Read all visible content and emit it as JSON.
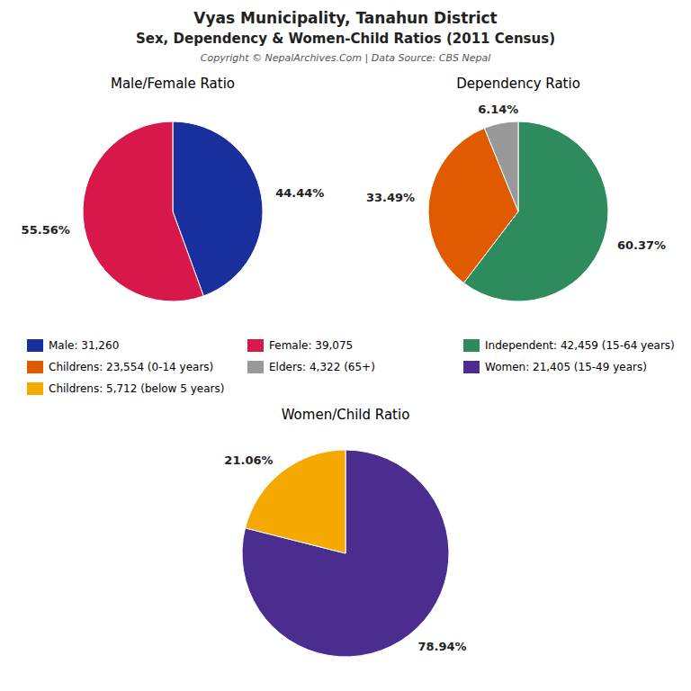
{
  "title": "Vyas Municipality, Tanahun District",
  "subtitle": "Sex, Dependency & Women-Child Ratios (2011 Census)",
  "annotations": [
    "Copyright © NepalArchives.Com | Data Source: CBS Nepal"
  ],
  "chart_data": [
    {
      "type": "pie",
      "title": "Male/Female Ratio",
      "categories": [
        "Male: 31,260",
        "Female: 39,075"
      ],
      "values": [
        44.44,
        55.56
      ],
      "value_labels": [
        "44.44%",
        "55.56%"
      ],
      "colors": [
        "#1a2f9e",
        "#d8184a"
      ],
      "data_labels": true,
      "legend": "bottom"
    },
    {
      "type": "pie",
      "title": "Dependency Ratio",
      "categories": [
        "Independent: 42,459 (15-64 years)",
        "Childrens: 23,554 (0-14 years)",
        "Elders: 4,322 (65+)"
      ],
      "values": [
        60.37,
        33.49,
        6.14
      ],
      "value_labels": [
        "60.37%",
        "33.49%",
        "6.14%"
      ],
      "colors": [
        "#2e8b5e",
        "#e05a00",
        "#999999"
      ],
      "data_labels": true,
      "legend": "bottom"
    },
    {
      "type": "pie",
      "title": "Women/Child Ratio",
      "categories": [
        "Women: 21,405 (15-49 years)",
        "Childrens: 5,712 (below 5 years)"
      ],
      "values": [
        78.94,
        21.06
      ],
      "value_labels": [
        "78.94%",
        "21.06%"
      ],
      "colors": [
        "#4b2d8f",
        "#f5a800"
      ],
      "data_labels": true,
      "legend": "top"
    }
  ]
}
